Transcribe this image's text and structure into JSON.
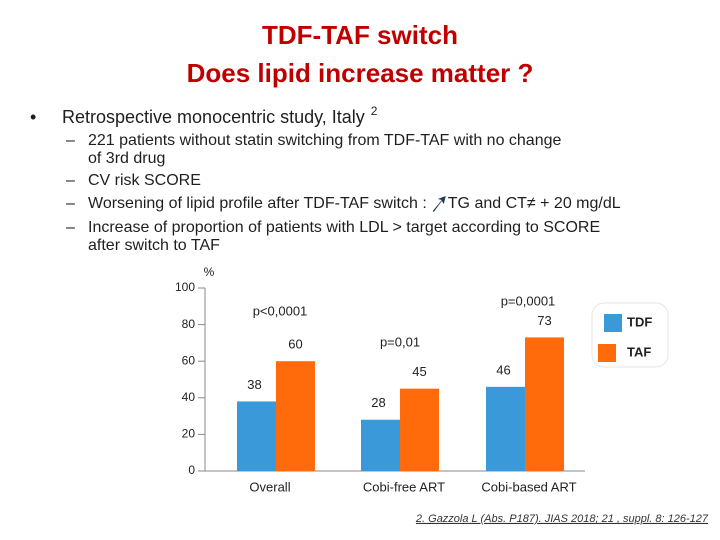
{
  "header": {
    "title": [
      "TDF-TAF switch",
      "Does lipid increase matter ?"
    ]
  },
  "bullets": {
    "text": "Retrospective monocentric study, Italy",
    "ref": "2",
    "items": [
      {
        "lines": [
          "221 patients without statin switching from TDF-TAF with no change",
          "of 3rd drug"
        ]
      },
      {
        "lines": [
          "CV risk SCORE"
        ]
      },
      {
        "lines": [
          "Worsening of lipid profile after TDF-TAF switch :"
        ],
        "after_arrow": "TG and CT≠ + 20 mg/dL"
      },
      {
        "lines": [
          "Increase of proportion of patients with LDL > target according to SCORE",
          "after switch to TAF"
        ]
      }
    ]
  },
  "chart_data": {
    "type": "bar",
    "ylabel": "%",
    "categories": [
      "Overall",
      "Cobi-free ART",
      "Cobi-based ART"
    ],
    "series": [
      {
        "name": "TDF",
        "color": "#3a9ad9",
        "values": [
          38,
          28,
          46
        ]
      },
      {
        "name": "TAF",
        "color": "#ff6a0a",
        "values": [
          60,
          45,
          73
        ]
      }
    ],
    "annotations": [
      "p<0,0001",
      "p=0,01",
      "p=0,0001"
    ],
    "ylim": [
      0,
      100
    ],
    "yticks": [
      0,
      20,
      40,
      60,
      80,
      100
    ]
  },
  "footer": {
    "citation": "2. Gazzola L (Abs. P187). JIAS 2018; 21 , suppl. 8: 126-127"
  }
}
